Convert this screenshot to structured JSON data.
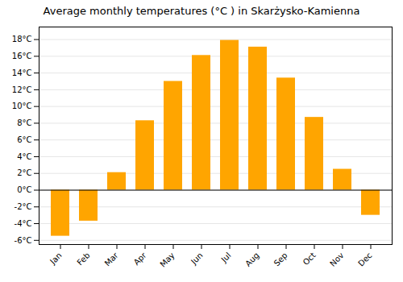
{
  "chart_data": {
    "type": "bar",
    "title": "Average monthly temperatures (°C ) in Skarżysko-Kamienna",
    "categories": [
      "Jan",
      "Feb",
      "Mar",
      "Apr",
      "May",
      "Jun",
      "Jul",
      "Aug",
      "Sep",
      "Oct",
      "Nov",
      "Dec"
    ],
    "values": [
      -5.5,
      -3.7,
      2.1,
      8.3,
      13.0,
      16.1,
      17.9,
      17.1,
      13.4,
      8.7,
      2.5,
      -3.0
    ],
    "color": "#FFA500",
    "ylim": [
      -6.5,
      19.5
    ],
    "yticks": [
      {
        "value": -6,
        "label": "-6°C"
      },
      {
        "value": -4,
        "label": "-4°C"
      },
      {
        "value": -2,
        "label": "-2°C"
      },
      {
        "value": 0,
        "label": "0°C"
      },
      {
        "value": 2,
        "label": "2°C"
      },
      {
        "value": 4,
        "label": "4°C"
      },
      {
        "value": 6,
        "label": "6°C"
      },
      {
        "value": 8,
        "label": "8°C"
      },
      {
        "value": 10,
        "label": "10°C"
      },
      {
        "value": 12,
        "label": "12°C"
      },
      {
        "value": 14,
        "label": "14°C"
      },
      {
        "value": 16,
        "label": "16°C"
      },
      {
        "value": 18,
        "label": "18°C"
      }
    ],
    "grid": true
  }
}
